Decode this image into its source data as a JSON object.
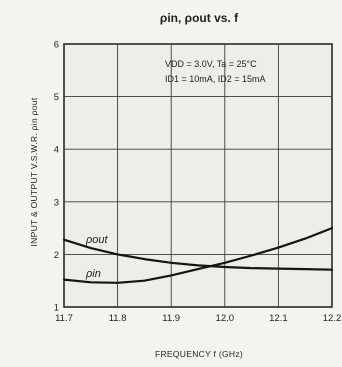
{
  "chart_data": {
    "type": "line",
    "title": "ρin, ρout vs. f",
    "xlabel": "FREQUENCY f (GHz)",
    "ylabel": "INPUT & OUTPUT V.S.W.R. ρin ρout",
    "xlim": [
      11.7,
      12.2
    ],
    "ylim": [
      1,
      6
    ],
    "x_ticks": [
      "11.7",
      "11.8",
      "11.9",
      "12.0",
      "12.1",
      "12.2"
    ],
    "y_ticks": [
      "1",
      "2",
      "3",
      "4",
      "5",
      "6"
    ],
    "grid": true,
    "conditions": [
      "VDD = 3.0V, Ta = 25°C",
      "ID1 = 10mA, ID2 = 15mA"
    ],
    "series": [
      {
        "name": "ρout",
        "x": [
          11.7,
          11.75,
          11.8,
          11.85,
          11.9,
          11.95,
          12.0,
          12.05,
          12.1,
          12.15,
          12.2
        ],
        "y": [
          2.28,
          2.12,
          2.0,
          1.91,
          1.84,
          1.79,
          1.76,
          1.74,
          1.73,
          1.72,
          1.71
        ]
      },
      {
        "name": "ρin",
        "x": [
          11.7,
          11.75,
          11.8,
          11.85,
          11.9,
          11.95,
          12.0,
          12.05,
          12.1,
          12.15,
          12.2
        ],
        "y": [
          1.52,
          1.47,
          1.46,
          1.5,
          1.6,
          1.72,
          1.84,
          1.98,
          2.13,
          2.3,
          2.5
        ]
      }
    ]
  }
}
